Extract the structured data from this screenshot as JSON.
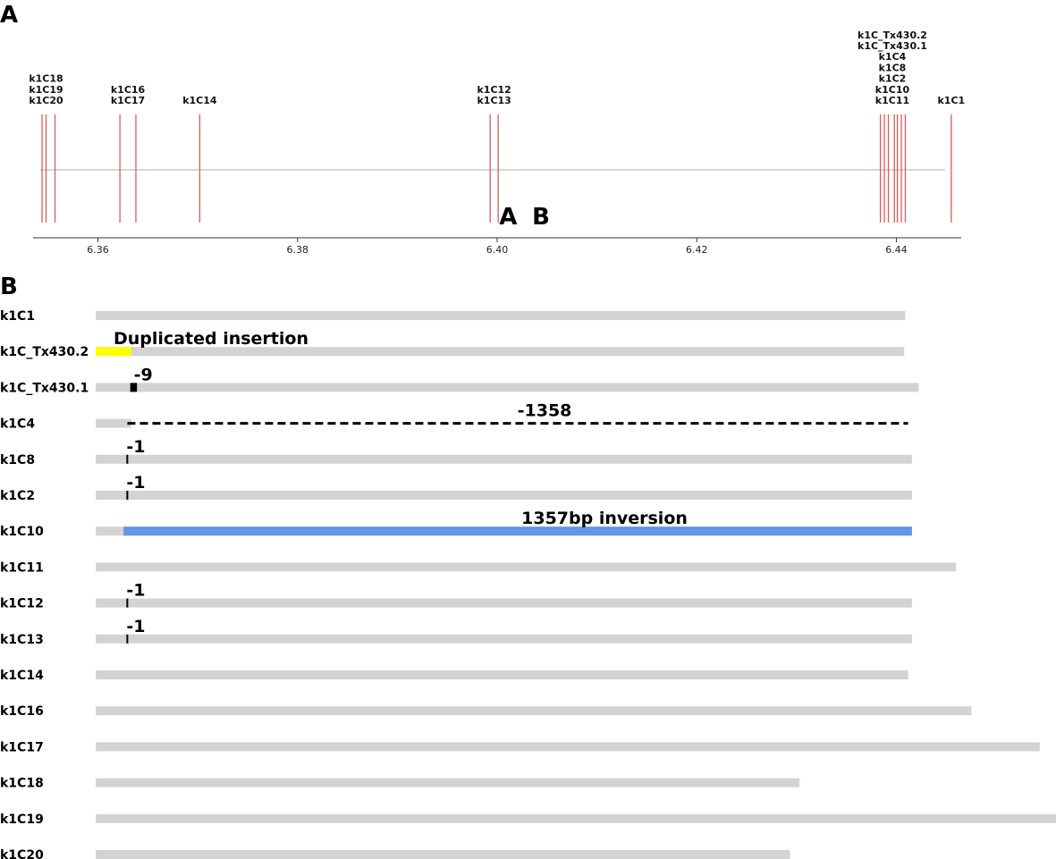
{
  "panel_a": {
    "letter": "A",
    "x_range": [
      6.3535,
      6.4465
    ],
    "ticks": [
      "6.36",
      "6.38",
      "6.40",
      "6.42",
      "6.44"
    ],
    "site_color": "#e05a5a",
    "markers": [
      {
        "label": "A",
        "x": 6.4002
      },
      {
        "label": "B",
        "x": 6.4035
      }
    ],
    "sites": [
      {
        "x": 6.3544
      },
      {
        "x": 6.3548
      },
      {
        "x": 6.3557
      },
      {
        "x": 6.3622
      },
      {
        "x": 6.3638
      },
      {
        "x": 6.3702
      },
      {
        "x": 6.3993
      },
      {
        "x": 6.4001
      },
      {
        "x": 6.4384
      },
      {
        "x": 6.4388
      },
      {
        "x": 6.4392
      },
      {
        "x": 6.4398
      },
      {
        "x": 6.4401
      },
      {
        "x": 6.4405
      },
      {
        "x": 6.4409
      },
      {
        "x": 6.4455
      }
    ],
    "label_groups": [
      {
        "x": 6.3548,
        "lines": [
          "k1C18",
          "k1C19",
          "k1C20"
        ]
      },
      {
        "x": 6.363,
        "lines": [
          "k1C16",
          "k1C17"
        ]
      },
      {
        "x": 6.3702,
        "lines": [
          "k1C14"
        ]
      },
      {
        "x": 6.3997,
        "lines": [
          "k1C12",
          "k1C13"
        ]
      },
      {
        "x": 6.4396,
        "lines": [
          "k1C_Tx430.2",
          "k1C_Tx430.1",
          "k1C4",
          "k1C8",
          "k1C2",
          "k1C10",
          "k1C11"
        ]
      },
      {
        "x": 6.4455,
        "lines": [
          "k1C1"
        ]
      }
    ]
  },
  "panel_b": {
    "letter": "B",
    "bar_color": "#d3d3d3",
    "rows": [
      {
        "label": "k1C1",
        "length": 0.843
      },
      {
        "label": "k1C_Tx430.2",
        "length": 0.842,
        "feature": {
          "type": "insertion",
          "text": "Duplicated insertion",
          "start": 0.0,
          "end": 0.037,
          "color": "#ffff00"
        }
      },
      {
        "label": "k1C_Tx430.1",
        "length": 0.857,
        "feature": {
          "type": "mark",
          "text": "-9",
          "start": 0.036,
          "end": 0.043,
          "color": "#000000"
        }
      },
      {
        "label": "k1C4",
        "length": 0.037,
        "feature": {
          "type": "deletion",
          "text": "-1358",
          "start": 0.033,
          "end": 0.846,
          "color": "#000000"
        }
      },
      {
        "label": "k1C8",
        "length": 0.85,
        "feature": {
          "type": "tick",
          "text": "-1",
          "start": 0.032,
          "color": "#000000"
        }
      },
      {
        "label": "k1C2",
        "length": 0.85,
        "feature": {
          "type": "tick",
          "text": "-1",
          "start": 0.032,
          "color": "#000000"
        }
      },
      {
        "label": "k1C10",
        "length": 0.85,
        "feature": {
          "type": "inversion",
          "text": "1357bp inversion",
          "start": 0.029,
          "end": 0.85,
          "color": "#6495ed"
        }
      },
      {
        "label": "k1C11",
        "length": 0.896
      },
      {
        "label": "k1C12",
        "length": 0.85,
        "feature": {
          "type": "tick",
          "text": "-1",
          "start": 0.032,
          "color": "#000000"
        }
      },
      {
        "label": "k1C13",
        "length": 0.85,
        "feature": {
          "type": "tick",
          "text": "-1",
          "start": 0.032,
          "color": "#000000"
        }
      },
      {
        "label": "k1C14",
        "length": 0.846
      },
      {
        "label": "k1C16",
        "length": 0.912
      },
      {
        "label": "k1C17",
        "length": 0.983
      },
      {
        "label": "k1C18",
        "length": 0.733
      },
      {
        "label": "k1C19",
        "length": 1.0
      },
      {
        "label": "k1C20",
        "length": 0.723
      }
    ]
  }
}
